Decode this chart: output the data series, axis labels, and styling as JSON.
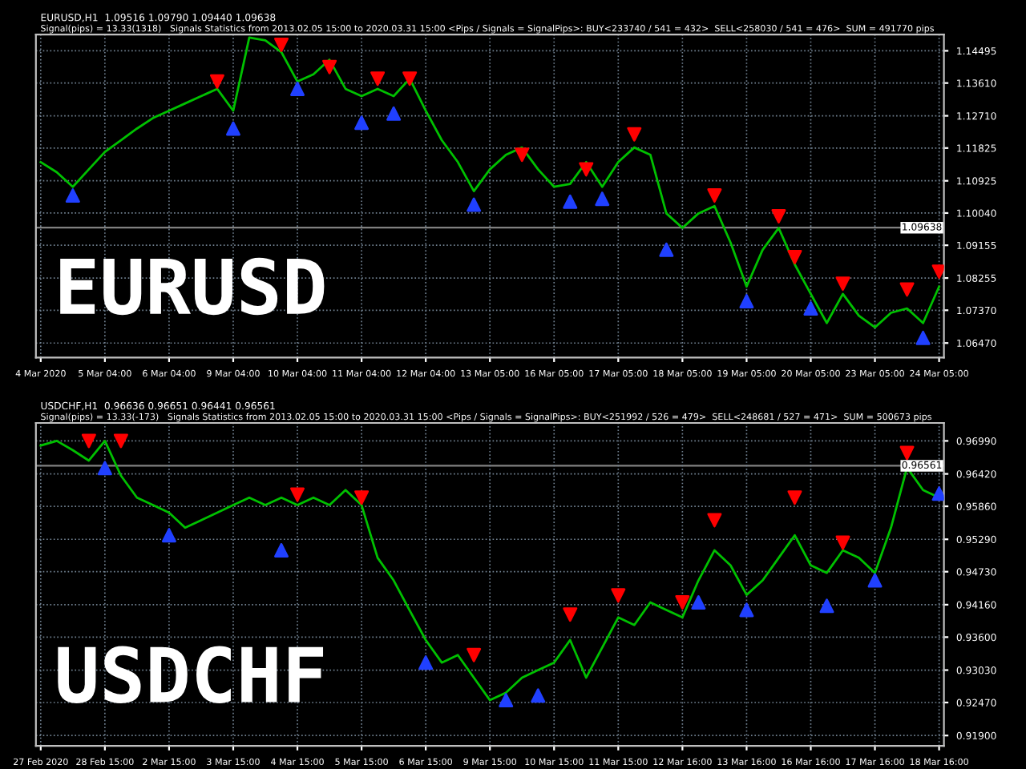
{
  "chart_data": [
    {
      "type": "line",
      "title": "EURUSD,H1  1.09516 1.09790 1.09440 1.09638",
      "subtitle": "Signal(pips) = 13.33(1318)   Signals Statistics from 2013.02.05 15:00 to 2020.03.31 15:00 <Pips / Signals = SignalPips>: BUY<233740 / 541 = 432>  SELL<258030 / 541 = 476>  SUM = 491770 pips",
      "annotations": [
        "EURUSD"
      ],
      "categories": [
        "4 Mar 2020",
        null,
        null,
        null,
        "5 Mar 04:00",
        null,
        null,
        null,
        "6 Mar 04:00",
        null,
        null,
        null,
        "9 Mar 04:00",
        null,
        null,
        null,
        "10 Mar 04:00",
        null,
        null,
        null,
        "11 Mar 04:00",
        null,
        null,
        null,
        "12 Mar 04:00",
        null,
        null,
        null,
        "13 Mar 05:00",
        null,
        null,
        null,
        "16 Mar 05:00",
        null,
        null,
        null,
        "17 Mar 05:00",
        null,
        null,
        null,
        "18 Mar 05:00",
        null,
        null,
        null,
        "19 Mar 05:00",
        null,
        null,
        null,
        "20 Mar 05:00",
        null,
        null,
        null,
        "23 Mar 05:00",
        null,
        null,
        null,
        "24 Mar 05:00"
      ],
      "series": [
        {
          "color": "#00c000",
          "values": [
            1.1144,
            1.1116,
            1.1076,
            1.1124,
            1.1172,
            1.1204,
            1.1236,
            1.1265,
            1.1285,
            1.1305,
            1.1325,
            1.1345,
            1.1285,
            1.1486,
            1.1478,
            1.1446,
            1.1365,
            1.1385,
            1.1425,
            1.1345,
            1.1325,
            1.1345,
            1.1325,
            1.1373,
            1.1285,
            1.1204,
            1.1144,
            1.1064,
            1.1124,
            1.1164,
            1.1184,
            1.1124,
            1.1076,
            1.1084,
            1.1144,
            1.1076,
            1.1144,
            1.1184,
            1.1164,
            1.1003,
            1.0963,
            1.1003,
            1.1023,
            1.0923,
            1.0802,
            1.0903,
            1.0963,
            1.0863,
            1.0782,
            1.0702,
            1.0782,
            1.0722,
            1.069,
            1.073,
            1.0742,
            1.0702,
            1.0802
          ]
        },
        {
          "type": "scatter",
          "color": "#ff0000",
          "marker": "triangle_down",
          "values": [
            null,
            null,
            null,
            null,
            null,
            null,
            null,
            null,
            null,
            null,
            null,
            1.1365,
            null,
            null,
            null,
            1.1466,
            null,
            null,
            1.1405,
            null,
            null,
            1.1373,
            null,
            1.1373,
            null,
            null,
            null,
            null,
            null,
            null,
            1.1164,
            null,
            null,
            null,
            1.1124,
            null,
            null,
            1.122,
            null,
            null,
            null,
            null,
            1.1052,
            null,
            null,
            null,
            1.0995,
            1.0883,
            null,
            null,
            1.081,
            null,
            null,
            null,
            1.0794,
            null,
            1.0843
          ]
        },
        {
          "type": "scatter",
          "color": "#2040ff",
          "marker": "triangle_up",
          "values": [
            null,
            null,
            1.1052,
            null,
            null,
            null,
            null,
            null,
            null,
            null,
            null,
            null,
            1.1236,
            null,
            null,
            null,
            1.1345,
            null,
            null,
            null,
            1.1252,
            null,
            1.1277,
            null,
            null,
            null,
            null,
            1.1027,
            null,
            null,
            null,
            null,
            null,
            1.1035,
            null,
            1.1043,
            null,
            null,
            null,
            1.0903,
            null,
            null,
            null,
            null,
            1.0762,
            null,
            null,
            null,
            1.0742,
            null,
            null,
            null,
            null,
            null,
            null,
            1.0661,
            null
          ]
        }
      ],
      "ylim": [
        1.0607,
        1.1494
      ],
      "yticks": [
        {
          "value": 1.0647,
          "label": "1.06470"
        },
        {
          "value": 1.0737,
          "label": "1.07370"
        },
        1.08255,
        1.09155,
        {
          "value": 1.1004,
          "label": "1.10040"
        },
        1.10925,
        1.11825,
        {
          "value": 1.1271,
          "label": "1.12710"
        },
        {
          "value": 1.1361,
          "label": "1.13610"
        },
        1.14495
      ],
      "ref_lines": [
        {
          "axis": "y",
          "value": 1.09638,
          "label": "1.09638",
          "color": "#808080"
        }
      ],
      "grid": true,
      "legend": false
    },
    {
      "type": "line",
      "title": "USDCHF,H1  0.96636 0.96651 0.96441 0.96561",
      "subtitle": "Signal(pips) = 13.33(-173)   Signals Statistics from 2013.02.05 15:00 to 2020.03.31 15:00 <Pips / Signals = SignalPips>: BUY<251992 / 526 = 479>  SELL<248681 / 527 = 471>  SUM = 500673 pips",
      "annotations": [
        "USDCHF"
      ],
      "categories": [
        "27 Feb 2020",
        null,
        null,
        null,
        "28 Feb 15:00",
        null,
        null,
        null,
        "2 Mar 15:00",
        null,
        null,
        null,
        "3 Mar 15:00",
        null,
        null,
        null,
        "4 Mar 15:00",
        null,
        null,
        null,
        "5 Mar 15:00",
        null,
        null,
        null,
        "6 Mar 15:00",
        null,
        null,
        null,
        "9 Mar 15:00",
        null,
        null,
        null,
        "10 Mar 15:00",
        null,
        null,
        null,
        "11 Mar 15:00",
        null,
        null,
        null,
        "12 Mar 16:00",
        null,
        null,
        null,
        "13 Mar 16:00",
        null,
        null,
        null,
        "16 Mar 16:00",
        null,
        null,
        null,
        "17 Mar 16:00",
        null,
        null,
        null,
        "18 Mar 16:00"
      ],
      "series": [
        {
          "color": "#00c000",
          "values": [
            0.9691,
            0.9699,
            0.9683,
            0.9665,
            0.9699,
            0.9639,
            0.9601,
            0.9588,
            0.9575,
            0.9549,
            0.9562,
            0.9575,
            0.9588,
            0.9601,
            0.9588,
            0.9601,
            0.9588,
            0.9601,
            0.9588,
            0.9614,
            0.9588,
            0.9497,
            0.9458,
            0.9406,
            0.9355,
            0.9316,
            0.9329,
            0.929,
            0.9251,
            0.9264,
            0.929,
            0.9303,
            0.9316,
            0.9355,
            0.929,
            0.9342,
            0.9394,
            0.9381,
            0.942,
            0.9407,
            0.9394,
            0.9458,
            0.951,
            0.9484,
            0.9433,
            0.9458,
            0.9497,
            0.9536,
            0.9484,
            0.9471,
            0.951,
            0.9497,
            0.9471,
            0.9549,
            0.9653,
            0.9614,
            0.9601
          ]
        },
        {
          "type": "scatter",
          "color": "#ff0000",
          "marker": "triangle_down",
          "values": [
            null,
            null,
            null,
            0.9699,
            null,
            0.9699,
            null,
            null,
            null,
            null,
            null,
            null,
            null,
            null,
            null,
            null,
            0.9606,
            null,
            null,
            null,
            0.9601,
            null,
            null,
            null,
            null,
            null,
            null,
            0.9329,
            null,
            null,
            null,
            null,
            null,
            0.9399,
            null,
            null,
            0.9432,
            null,
            null,
            null,
            0.942,
            null,
            0.9562,
            null,
            null,
            null,
            null,
            0.9601,
            null,
            null,
            0.9523,
            null,
            null,
            null,
            0.9678,
            null,
            null
          ]
        },
        {
          "type": "scatter",
          "color": "#2040ff",
          "marker": "triangle_up",
          "values": [
            null,
            null,
            null,
            null,
            0.9652,
            null,
            null,
            null,
            0.9536,
            null,
            null,
            null,
            null,
            null,
            null,
            0.951,
            null,
            null,
            null,
            null,
            null,
            null,
            null,
            null,
            0.9316,
            null,
            null,
            null,
            null,
            0.9251,
            null,
            0.9259,
            null,
            null,
            null,
            null,
            null,
            null,
            null,
            null,
            null,
            0.942,
            null,
            null,
            0.9407,
            null,
            null,
            null,
            null,
            0.9414,
            null,
            null,
            0.9458,
            null,
            null,
            null,
            0.9608
          ]
        }
      ],
      "ylim": [
        0.9172,
        0.973
      ],
      "yticks": [
        {
          "value": 0.919,
          "label": "0.91900"
        },
        {
          "value": 0.9247,
          "label": "0.92470"
        },
        {
          "value": 0.9303,
          "label": "0.93030"
        },
        {
          "value": 0.936,
          "label": "0.93600"
        },
        {
          "value": 0.9416,
          "label": "0.94160"
        },
        {
          "value": 0.9473,
          "label": "0.94730"
        },
        {
          "value": 0.9529,
          "label": "0.95290"
        },
        {
          "value": 0.9586,
          "label": "0.95860"
        },
        {
          "value": 0.9642,
          "label": "0.96420"
        },
        {
          "value": 0.9699,
          "label": "0.96990"
        }
      ],
      "ref_lines": [
        {
          "axis": "y",
          "value": 0.96561,
          "label": "0.96561",
          "color": "#808080"
        }
      ],
      "grid": true,
      "legend": false
    }
  ]
}
